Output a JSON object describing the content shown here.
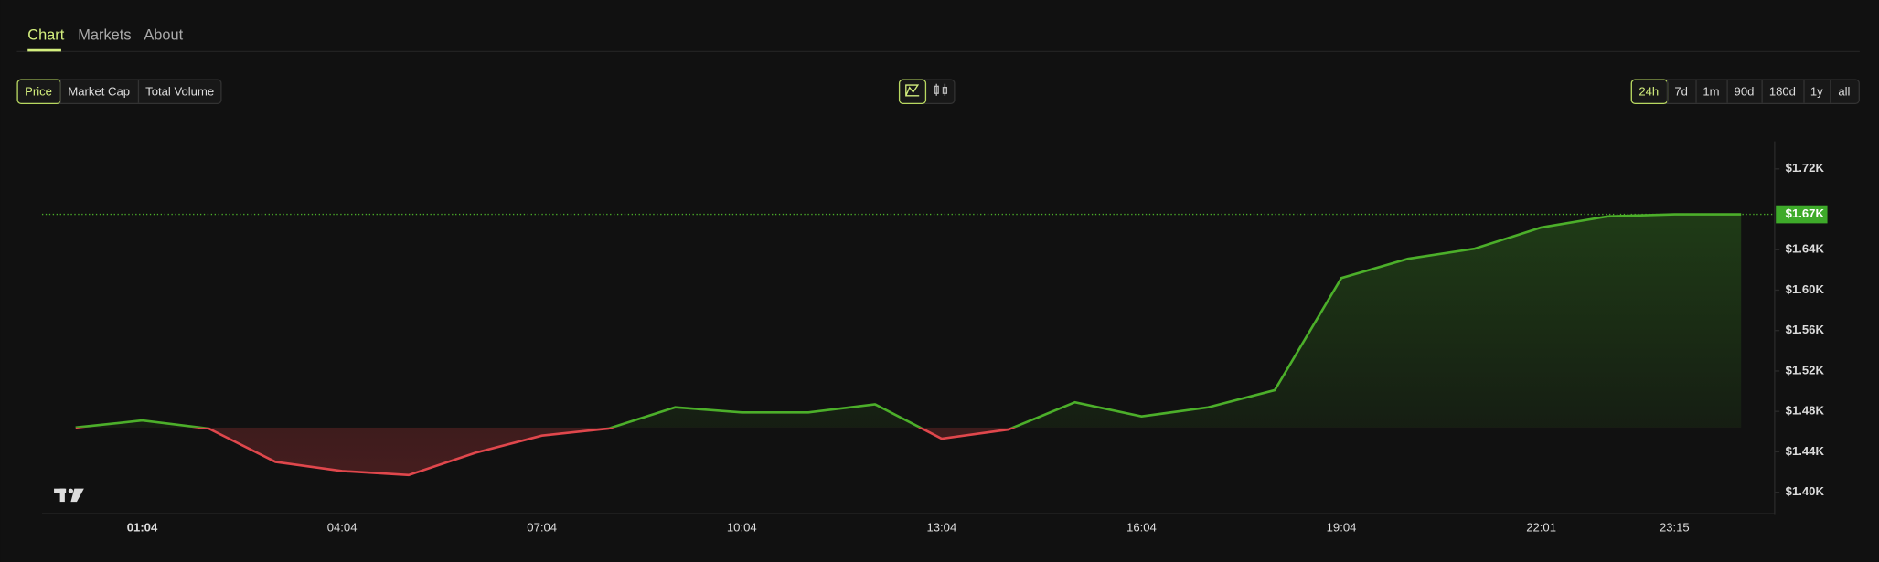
{
  "tabs": [
    "Chart",
    "Markets",
    "About"
  ],
  "metric_buttons": [
    "Price",
    "Market Cap",
    "Total Volume"
  ],
  "range_buttons": [
    "24h",
    "7d",
    "1m",
    "90d",
    "180d",
    "1y",
    "all"
  ],
  "chart_data": {
    "type": "line",
    "categories": [
      null,
      "01:04",
      null,
      null,
      "04:04",
      null,
      null,
      "07:04",
      null,
      null,
      "10:04",
      null,
      null,
      "13:04",
      null,
      null,
      "16:04",
      null,
      null,
      "19:04",
      null,
      null,
      "22:01",
      null,
      "23:15",
      null
    ],
    "series": [
      {
        "color": "#4caf2a",
        "below_color": "#e0474c",
        "values": [
          1464,
          1471,
          1463,
          1430,
          1421,
          1417,
          1439,
          1456,
          1463,
          1484,
          1479,
          1479,
          1487,
          1453,
          1462,
          1489,
          1475,
          1484,
          1501,
          1612,
          1631,
          1641,
          1662,
          1673,
          1675,
          1675
        ]
      }
    ],
    "ylim": [
      1380,
      1750
    ],
    "yticks": [
      {
        "value": 1400,
        "label": "$1.40K"
      },
      {
        "value": 1440,
        "label": "$1.44K"
      },
      {
        "value": 1480,
        "label": "$1.48K"
      },
      {
        "value": 1520,
        "label": "$1.52K"
      },
      {
        "value": 1560,
        "label": "$1.56K"
      },
      {
        "value": 1600,
        "label": "$1.60K"
      },
      {
        "value": 1640,
        "label": "$1.64K"
      },
      {
        "value": 1720,
        "label": "$1.72K"
      }
    ],
    "last_price_label": "$1.67K"
  }
}
